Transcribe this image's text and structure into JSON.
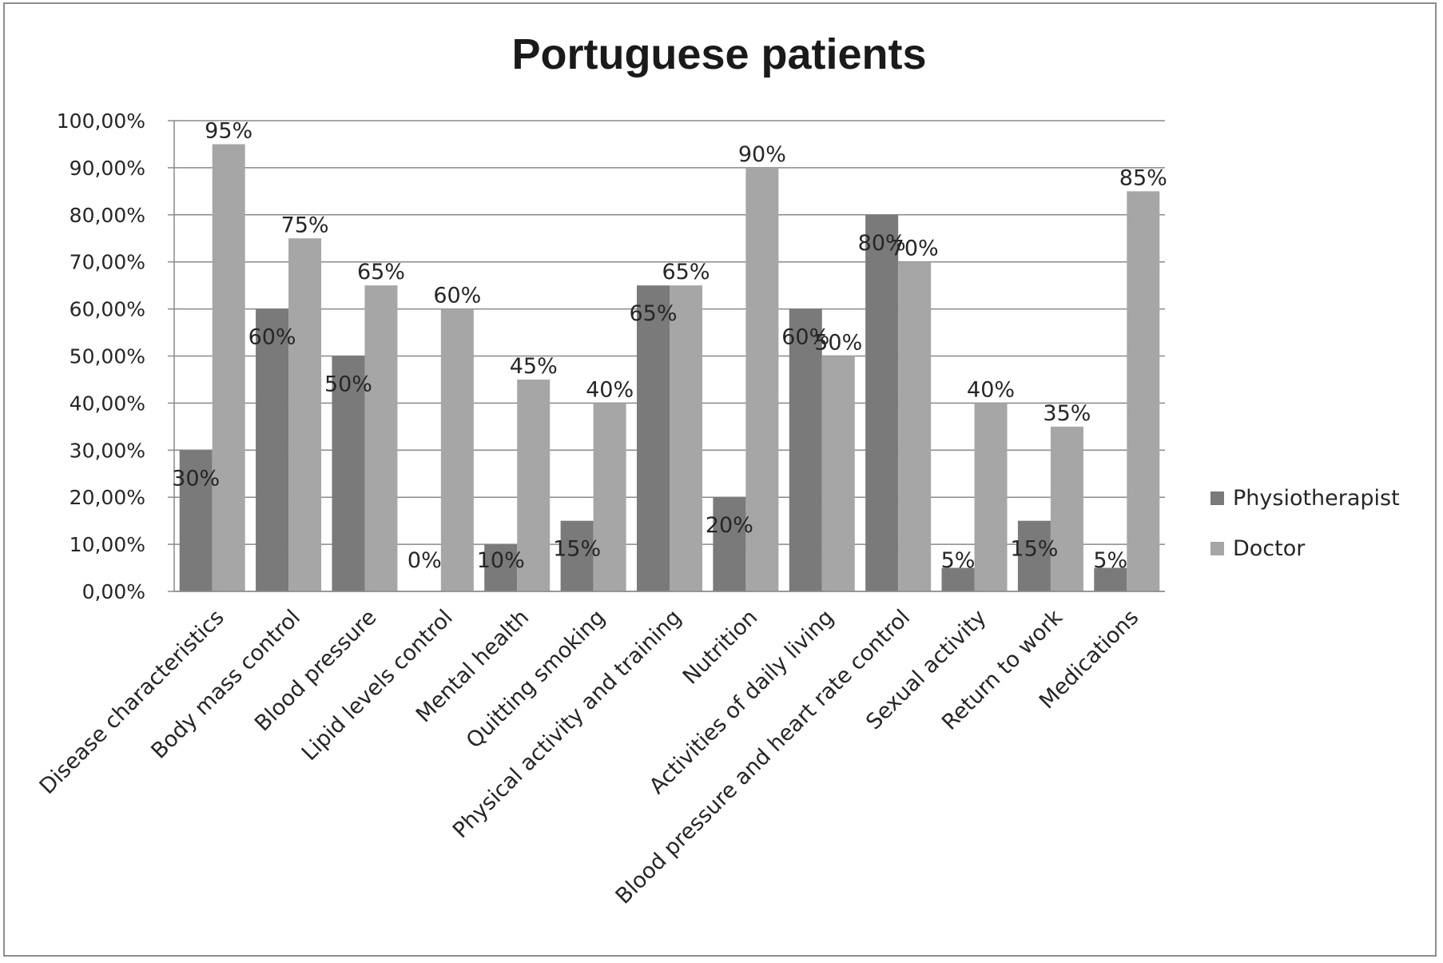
{
  "chart_data": {
    "type": "bar",
    "title": "Portuguese patients",
    "xlabel": "",
    "ylabel": "",
    "ylim": [
      0,
      100
    ],
    "y_ticks": [
      "0,00%",
      "10,00%",
      "20,00%",
      "30,00%",
      "40,00%",
      "50,00%",
      "60,00%",
      "70,00%",
      "80,00%",
      "90,00%",
      "100,00%"
    ],
    "grid": true,
    "legend_position": "right",
    "categories": [
      "Disease characteristics",
      "Body mass control",
      "Blood pressure",
      "Lipid levels control",
      "Mental health",
      "Quitting smoking",
      "Physical activity and training",
      "Nutrition",
      "Activities of daily living",
      "Blood pressure and heart rate control",
      "Sexual activity",
      "Return to work",
      "Medications"
    ],
    "series": [
      {
        "name": "Physiotherapist",
        "color": "#7a7a7a",
        "values": [
          30,
          60,
          50,
          0,
          10,
          15,
          65,
          20,
          60,
          80,
          5,
          15,
          5
        ],
        "labels": [
          "30%",
          "60%",
          "50%",
          "0%",
          "10%",
          "15%",
          "65%",
          "20%",
          "60%",
          "80%",
          "5%",
          "15%",
          "5%"
        ]
      },
      {
        "name": "Doctor",
        "color": "#a6a6a6",
        "values": [
          95,
          75,
          65,
          60,
          45,
          40,
          65,
          90,
          50,
          70,
          40,
          35,
          85
        ],
        "labels": [
          "95%",
          "75%",
          "65%",
          "60%",
          "45%",
          "40%",
          "65%",
          "90%",
          "50%",
          "70%",
          "40%",
          "35%",
          "85%"
        ]
      }
    ]
  }
}
